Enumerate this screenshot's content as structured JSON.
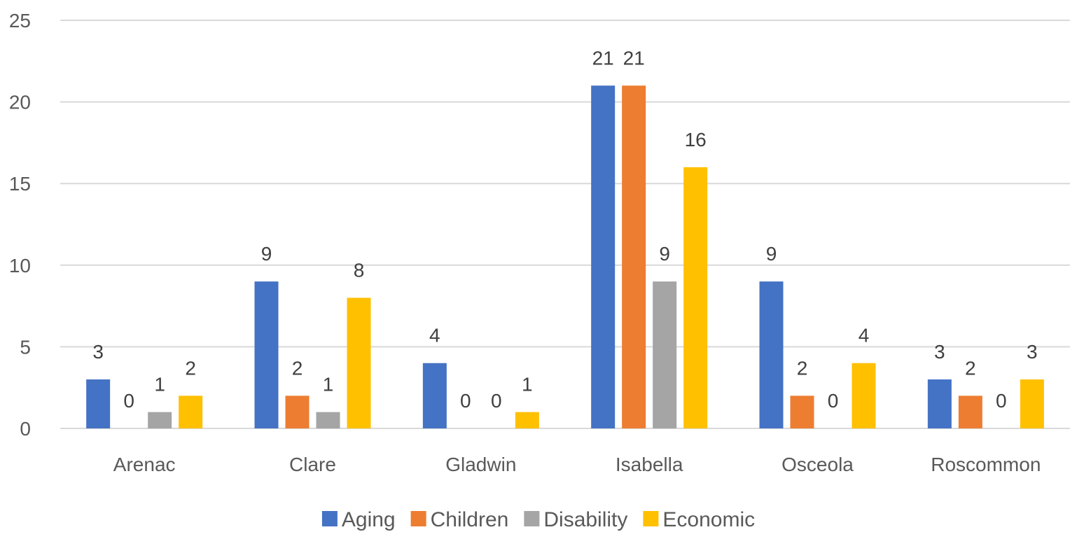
{
  "chart_data": {
    "type": "bar",
    "categories": [
      "Arenac",
      "Clare",
      "Gladwin",
      "Isabella",
      "Osceola",
      "Roscommon"
    ],
    "series": [
      {
        "name": "Aging",
        "color": "#4472c4",
        "values": [
          3,
          9,
          4,
          21,
          9,
          3
        ]
      },
      {
        "name": "Children",
        "color": "#ed7d31",
        "values": [
          0,
          2,
          0,
          21,
          2,
          2
        ]
      },
      {
        "name": "Disability",
        "color": "#a5a5a5",
        "values": [
          1,
          1,
          0,
          9,
          0,
          0
        ]
      },
      {
        "name": "Economic",
        "color": "#ffc000",
        "values": [
          2,
          8,
          1,
          16,
          4,
          3
        ]
      }
    ],
    "yticks": [
      0,
      5,
      10,
      15,
      20,
      25
    ],
    "ylim": [
      0,
      25
    ],
    "grid": true,
    "data_labels": true,
    "legend_position": "bottom"
  }
}
